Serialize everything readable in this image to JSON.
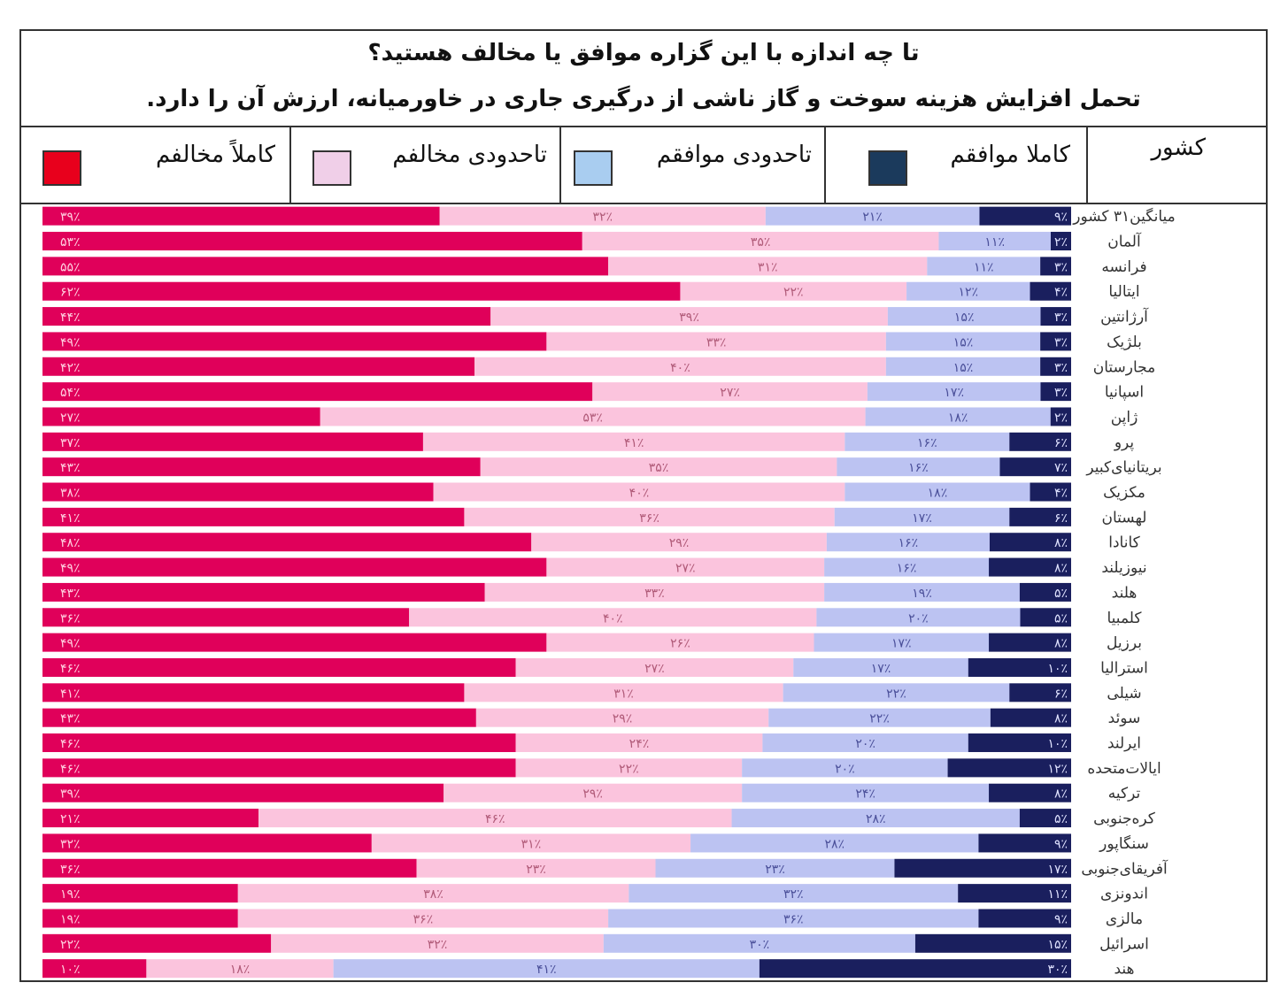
{
  "title_line1": "تا چه اندازه با  این گزاره موافق یا مخالف هستید؟",
  "title_line2": "تحمل افزایش هزینه سوخت و گاز ناشی از درگیری جاری در خاورمیانه، ارزش آن را دارد.",
  "legend": {
    "country_header": "کشور",
    "items": [
      {
        "label": "کاملا موافقم",
        "color": "#1b3a5c"
      },
      {
        "label": "تاحدودی موافقم",
        "color": "#a9cdf0"
      },
      {
        "label": "تاحدودی مخالفم",
        "color": "#f0cfe8"
      },
      {
        "label": "کاملاً مخالفم",
        "color": "#e8001c"
      }
    ]
  },
  "chart_data": {
    "type": "bar",
    "orientation": "horizontal",
    "stacked": true,
    "unit": "%",
    "colors": {
      "strongly_agree": "#1a1f5e",
      "somewhat_agree": "#bcc3f2",
      "somewhat_disagree": "#fbc4dd",
      "strongly_disagree": "#e0005a"
    },
    "series_order_left_to_right": [
      "strongly_disagree",
      "somewhat_disagree",
      "somewhat_agree",
      "strongly_agree"
    ],
    "rows": [
      {
        "country": "میانگین۳۱ کشور",
        "strongly_disagree": 39,
        "somewhat_disagree": 32,
        "somewhat_agree": 21,
        "strongly_agree": 9
      },
      {
        "country": "آلمان",
        "strongly_disagree": 53,
        "somewhat_disagree": 35,
        "somewhat_agree": 11,
        "strongly_agree": 2
      },
      {
        "country": "فرانسه",
        "strongly_disagree": 55,
        "somewhat_disagree": 31,
        "somewhat_agree": 11,
        "strongly_agree": 3
      },
      {
        "country": "ایتالیا",
        "strongly_disagree": 62,
        "somewhat_disagree": 22,
        "somewhat_agree": 12,
        "strongly_agree": 4
      },
      {
        "country": "آرژانتین",
        "strongly_disagree": 44,
        "somewhat_disagree": 39,
        "somewhat_agree": 15,
        "strongly_agree": 3
      },
      {
        "country": "بلژیک",
        "strongly_disagree": 49,
        "somewhat_disagree": 33,
        "somewhat_agree": 15,
        "strongly_agree": 3
      },
      {
        "country": "مجارستان",
        "strongly_disagree": 42,
        "somewhat_disagree": 40,
        "somewhat_agree": 15,
        "strongly_agree": 3
      },
      {
        "country": "اسپانیا",
        "strongly_disagree": 54,
        "somewhat_disagree": 27,
        "somewhat_agree": 17,
        "strongly_agree": 3
      },
      {
        "country": "ژاپن",
        "strongly_disagree": 27,
        "somewhat_disagree": 53,
        "somewhat_agree": 18,
        "strongly_agree": 2
      },
      {
        "country": "پرو",
        "strongly_disagree": 37,
        "somewhat_disagree": 41,
        "somewhat_agree": 16,
        "strongly_agree": 6
      },
      {
        "country": "بریتانیای‌کبیر",
        "strongly_disagree": 43,
        "somewhat_disagree": 35,
        "somewhat_agree": 16,
        "strongly_agree": 7
      },
      {
        "country": "مکزیک",
        "strongly_disagree": 38,
        "somewhat_disagree": 40,
        "somewhat_agree": 18,
        "strongly_agree": 4
      },
      {
        "country": "لهستان",
        "strongly_disagree": 41,
        "somewhat_disagree": 36,
        "somewhat_agree": 17,
        "strongly_agree": 6
      },
      {
        "country": "کانادا",
        "strongly_disagree": 48,
        "somewhat_disagree": 29,
        "somewhat_agree": 16,
        "strongly_agree": 8
      },
      {
        "country": "نیوزیلند",
        "strongly_disagree": 49,
        "somewhat_disagree": 27,
        "somewhat_agree": 16,
        "strongly_agree": 8
      },
      {
        "country": "هلند",
        "strongly_disagree": 43,
        "somewhat_disagree": 33,
        "somewhat_agree": 19,
        "strongly_agree": 5
      },
      {
        "country": "کلمبیا",
        "strongly_disagree": 36,
        "somewhat_disagree": 40,
        "somewhat_agree": 20,
        "strongly_agree": 5
      },
      {
        "country": "برزیل",
        "strongly_disagree": 49,
        "somewhat_disagree": 26,
        "somewhat_agree": 17,
        "strongly_agree": 8
      },
      {
        "country": "استرالیا",
        "strongly_disagree": 46,
        "somewhat_disagree": 27,
        "somewhat_agree": 17,
        "strongly_agree": 10
      },
      {
        "country": "شیلی",
        "strongly_disagree": 41,
        "somewhat_disagree": 31,
        "somewhat_agree": 22,
        "strongly_agree": 6
      },
      {
        "country": "سوئد",
        "strongly_disagree": 43,
        "somewhat_disagree": 29,
        "somewhat_agree": 22,
        "strongly_agree": 8
      },
      {
        "country": "ایرلند",
        "strongly_disagree": 46,
        "somewhat_disagree": 24,
        "somewhat_agree": 20,
        "strongly_agree": 10
      },
      {
        "country": "ایالات‌متحده",
        "strongly_disagree": 46,
        "somewhat_disagree": 22,
        "somewhat_agree": 20,
        "strongly_agree": 12
      },
      {
        "country": "ترکیه",
        "strongly_disagree": 39,
        "somewhat_disagree": 29,
        "somewhat_agree": 24,
        "strongly_agree": 8
      },
      {
        "country": "کره‌جنوبی",
        "strongly_disagree": 21,
        "somewhat_disagree": 46,
        "somewhat_agree": 28,
        "strongly_agree": 5
      },
      {
        "country": "سنگاپور",
        "strongly_disagree": 32,
        "somewhat_disagree": 31,
        "somewhat_agree": 28,
        "strongly_agree": 9
      },
      {
        "country": "آفریقای‌جنوبی",
        "strongly_disagree": 36,
        "somewhat_disagree": 23,
        "somewhat_agree": 23,
        "strongly_agree": 17
      },
      {
        "country": "اندونزی",
        "strongly_disagree": 19,
        "somewhat_disagree": 38,
        "somewhat_agree": 32,
        "strongly_agree": 11
      },
      {
        "country": "مالزی",
        "strongly_disagree": 19,
        "somewhat_disagree": 36,
        "somewhat_agree": 36,
        "strongly_agree": 9
      },
      {
        "country": "اسرائیل",
        "strongly_disagree": 22,
        "somewhat_disagree": 32,
        "somewhat_agree": 30,
        "strongly_agree": 15
      },
      {
        "country": "هند",
        "strongly_disagree": 10,
        "somewhat_disagree": 18,
        "somewhat_agree": 41,
        "strongly_agree": 30
      }
    ]
  }
}
